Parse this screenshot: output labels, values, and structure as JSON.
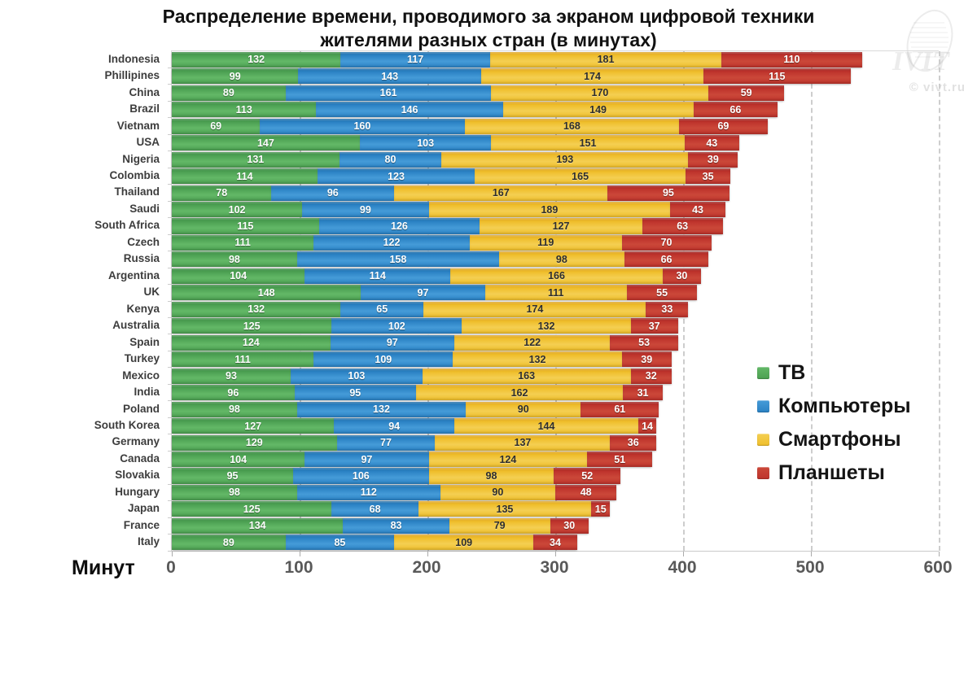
{
  "title_line1": "Распределение времени, проводимого за экраном цифровой техники",
  "title_line2": "жителями разных стран (в минутах)",
  "watermark": "© vivt.ru",
  "chart_data": {
    "type": "bar",
    "orientation": "horizontal-stacked",
    "title": "Распределение времени, проводимого за экраном цифровой техники жителями разных стран (в минутах)",
    "xlabel": "Минут",
    "x_ticks": [
      0,
      100,
      200,
      300,
      400,
      500,
      600
    ],
    "xlim": [
      0,
      600
    ],
    "grid": "vertical-dashed",
    "legend_position": "right-middle",
    "series": [
      {
        "name": "ТВ",
        "color": "#4CA052",
        "color_dark": "#3A8A42",
        "color_light": "#63B867",
        "label_style": "light"
      },
      {
        "name": "Компьютеры",
        "color": "#2B82C4",
        "color_dark": "#1D6BA6",
        "color_light": "#459BD8",
        "label_style": "light"
      },
      {
        "name": "Смартфоны",
        "color": "#EFBE2B",
        "color_dark": "#DCA11C",
        "color_light": "#F4CF52",
        "label_style": "dark"
      },
      {
        "name": "Планшеты",
        "color": "#BE332C",
        "color_dark": "#9E221F",
        "color_light": "#CB4839",
        "label_style": "light"
      }
    ],
    "rows": [
      {
        "country": "Indonesia",
        "values": [
          132,
          117,
          181,
          110
        ]
      },
      {
        "country": "Phillipines",
        "values": [
          99,
          143,
          174,
          115
        ]
      },
      {
        "country": "China",
        "values": [
          89,
          161,
          170,
          59
        ]
      },
      {
        "country": "Brazil",
        "values": [
          113,
          146,
          149,
          66
        ]
      },
      {
        "country": "Vietnam",
        "values": [
          69,
          160,
          168,
          69
        ]
      },
      {
        "country": "USA",
        "values": [
          147,
          103,
          151,
          43
        ]
      },
      {
        "country": "Nigeria",
        "values": [
          131,
          80,
          193,
          39
        ]
      },
      {
        "country": "Colombia",
        "values": [
          114,
          123,
          165,
          35
        ]
      },
      {
        "country": "Thailand",
        "values": [
          78,
          96,
          167,
          95
        ]
      },
      {
        "country": "Saudi",
        "values": [
          102,
          99,
          189,
          43
        ]
      },
      {
        "country": "South Africa",
        "values": [
          115,
          126,
          127,
          63
        ]
      },
      {
        "country": "Czech",
        "values": [
          111,
          122,
          119,
          70
        ]
      },
      {
        "country": "Russia",
        "values": [
          98,
          158,
          98,
          66
        ]
      },
      {
        "country": "Argentina",
        "values": [
          104,
          114,
          166,
          30
        ]
      },
      {
        "country": "UK",
        "values": [
          148,
          97,
          111,
          55
        ]
      },
      {
        "country": "Kenya",
        "values": [
          132,
          65,
          174,
          33
        ]
      },
      {
        "country": "Australia",
        "values": [
          125,
          102,
          132,
          37
        ]
      },
      {
        "country": "Spain",
        "values": [
          124,
          97,
          122,
          53
        ]
      },
      {
        "country": "Turkey",
        "values": [
          111,
          109,
          132,
          39
        ]
      },
      {
        "country": "Mexico",
        "values": [
          93,
          103,
          163,
          32
        ]
      },
      {
        "country": "India",
        "values": [
          96,
          95,
          162,
          31
        ]
      },
      {
        "country": "Poland",
        "values": [
          98,
          132,
          90,
          61
        ]
      },
      {
        "country": "South Korea",
        "values": [
          127,
          94,
          144,
          14
        ]
      },
      {
        "country": "Germany",
        "values": [
          129,
          77,
          137,
          36
        ]
      },
      {
        "country": "Canada",
        "values": [
          104,
          97,
          124,
          51
        ]
      },
      {
        "country": "Slovakia",
        "values": [
          95,
          106,
          98,
          52
        ]
      },
      {
        "country": "Hungary",
        "values": [
          98,
          112,
          90,
          48
        ]
      },
      {
        "country": "Japan",
        "values": [
          125,
          68,
          135,
          15
        ]
      },
      {
        "country": "France",
        "values": [
          134,
          83,
          79,
          30
        ]
      },
      {
        "country": "Italy",
        "values": [
          89,
          85,
          109,
          34
        ]
      }
    ]
  }
}
